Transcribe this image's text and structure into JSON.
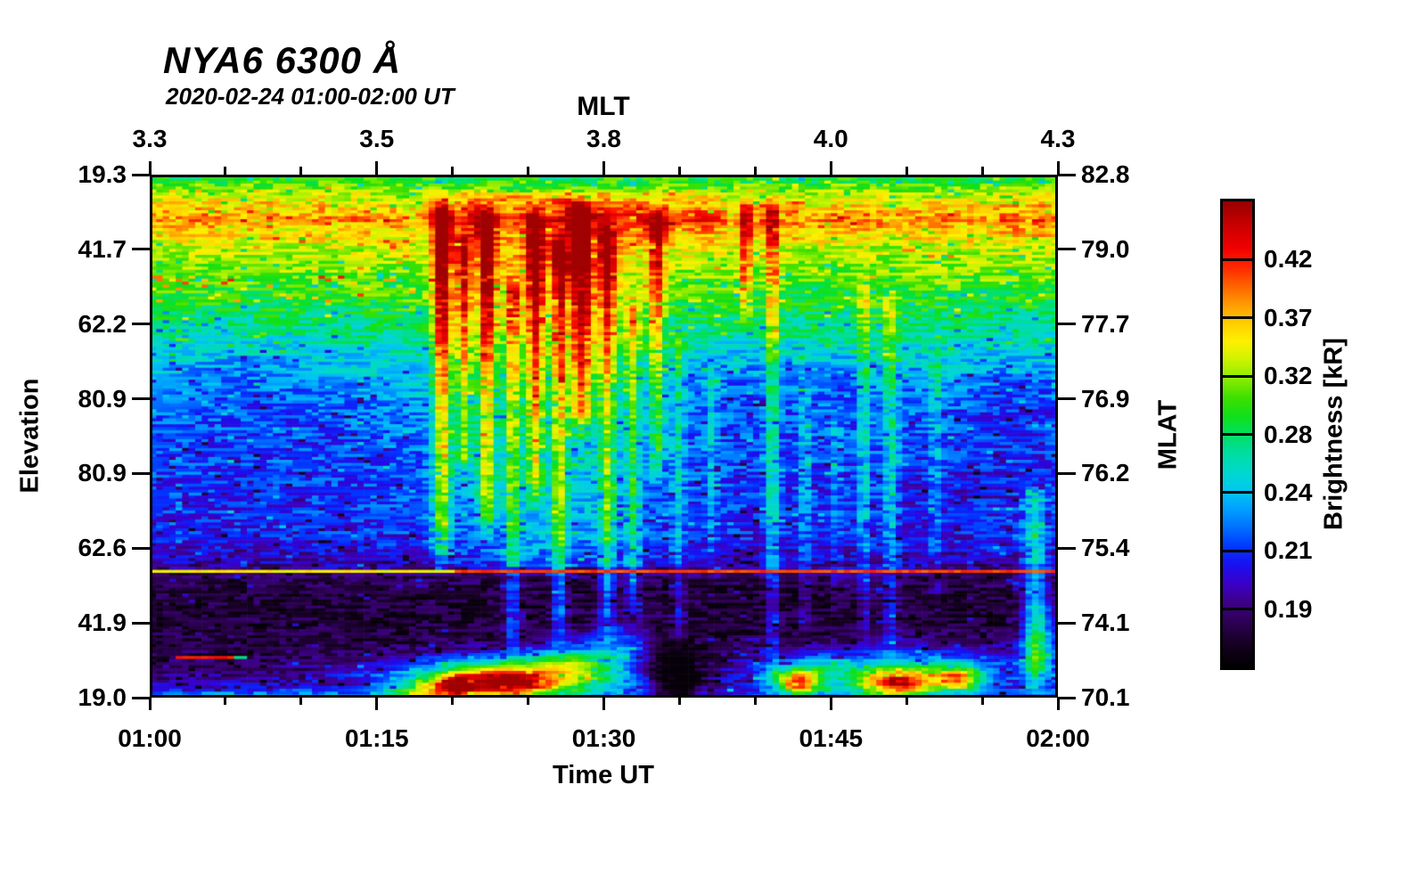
{
  "chart_data": {
    "type": "heatmap",
    "title": "NYA6 6300 Å",
    "subtitle": "2020-02-24 01:00-02:00 UT",
    "axes": {
      "top": {
        "label": "MLT",
        "ticks": [
          "3.3",
          "3.5",
          "3.8",
          "4.0",
          "4.3"
        ]
      },
      "bottom": {
        "label": "Time UT",
        "ticks": [
          "01:00",
          "01:15",
          "01:30",
          "01:45",
          "02:00"
        ]
      },
      "left": {
        "label": "Elevation",
        "ticks": [
          "19.3",
          "41.7",
          "62.2",
          "80.9",
          "80.9",
          "62.6",
          "41.9",
          "19.0"
        ]
      },
      "right": {
        "label": "MLAT",
        "ticks": [
          "82.8",
          "79.0",
          "77.7",
          "76.9",
          "76.2",
          "75.4",
          "74.1",
          "70.1"
        ]
      }
    },
    "colorbar": {
      "label": "Brightness [kR]",
      "ticks_top_to_bottom": [
        "0.42",
        "0.37",
        "0.32",
        "0.28",
        "0.24",
        "0.21",
        "0.19"
      ]
    },
    "grid": {
      "cols": 140,
      "rows": 176
    },
    "seed": 1337,
    "colormap_stops": [
      [
        0.0,
        "#000000"
      ],
      [
        0.05,
        "#160022"
      ],
      [
        0.1,
        "#2e0057"
      ],
      [
        0.14,
        "#3d0087"
      ],
      [
        0.18,
        "#3a00c8"
      ],
      [
        0.22,
        "#1a10f0"
      ],
      [
        0.26,
        "#0038ff"
      ],
      [
        0.3,
        "#0070ff"
      ],
      [
        0.34,
        "#00a0ff"
      ],
      [
        0.38,
        "#00c8f0"
      ],
      [
        0.42,
        "#00d8cc"
      ],
      [
        0.46,
        "#00dda0"
      ],
      [
        0.5,
        "#00e060"
      ],
      [
        0.54,
        "#10e018"
      ],
      [
        0.58,
        "#40e000"
      ],
      [
        0.62,
        "#8cec00"
      ],
      [
        0.66,
        "#ccf300"
      ],
      [
        0.7,
        "#fff000"
      ],
      [
        0.74,
        "#ffcc00"
      ],
      [
        0.78,
        "#ff9900"
      ],
      [
        0.82,
        "#ff6000"
      ],
      [
        0.86,
        "#ff2600"
      ],
      [
        0.9,
        "#f00000"
      ],
      [
        0.95,
        "#c80000"
      ],
      [
        1.0,
        "#960000"
      ]
    ],
    "base_profile": [
      [
        0.0,
        0.52
      ],
      [
        0.012,
        0.56
      ],
      [
        0.03,
        0.64
      ],
      [
        0.055,
        0.72
      ],
      [
        0.082,
        0.8
      ],
      [
        0.11,
        0.72
      ],
      [
        0.14,
        0.66
      ],
      [
        0.18,
        0.61
      ],
      [
        0.22,
        0.56
      ],
      [
        0.27,
        0.5
      ],
      [
        0.32,
        0.44
      ],
      [
        0.37,
        0.38
      ],
      [
        0.42,
        0.33
      ],
      [
        0.47,
        0.29
      ],
      [
        0.54,
        0.27
      ],
      [
        0.62,
        0.25
      ],
      [
        0.69,
        0.23
      ],
      [
        0.73,
        0.18
      ],
      [
        0.757,
        0.14
      ],
      [
        0.77,
        0.1
      ],
      [
        0.8,
        0.07
      ],
      [
        0.88,
        0.07
      ],
      [
        0.92,
        0.09
      ],
      [
        0.955,
        0.12
      ],
      [
        0.98,
        0.16
      ],
      [
        1.0,
        0.22
      ]
    ],
    "band": {
      "center": 0.082,
      "width": 0.05,
      "col_mod_amp": 0.16
    },
    "broad_regions": [
      {
        "cx": 0.435,
        "w": 0.115,
        "amp": 0.13,
        "r0": 0.03,
        "r1": 0.75
      }
    ],
    "streaks": [
      {
        "cx": 0.321,
        "w": 0.01,
        "amp": 0.46,
        "r0": 0.04,
        "r1": 0.76,
        "f": 0.3
      },
      {
        "cx": 0.345,
        "w": 0.008,
        "amp": 0.34,
        "r0": 0.1,
        "r1": 0.6,
        "f": 0.3
      },
      {
        "cx": 0.37,
        "w": 0.009,
        "amp": 0.42,
        "r0": 0.05,
        "r1": 0.7,
        "f": 0.3
      },
      {
        "cx": 0.399,
        "w": 0.008,
        "amp": 0.3,
        "r0": 0.18,
        "r1": 0.95,
        "f": 0.4
      },
      {
        "cx": 0.424,
        "w": 0.009,
        "amp": 0.4,
        "r0": 0.05,
        "r1": 0.65,
        "f": 0.3
      },
      {
        "cx": 0.451,
        "w": 0.008,
        "amp": 0.36,
        "r0": 0.1,
        "r1": 0.92,
        "f": 0.4
      },
      {
        "cx": 0.475,
        "w": 0.012,
        "amp": 0.44,
        "r0": 0.04,
        "r1": 0.52,
        "f": 0.2
      },
      {
        "cx": 0.504,
        "w": 0.009,
        "amp": 0.34,
        "r0": 0.07,
        "r1": 0.9,
        "f": 0.4
      },
      {
        "cx": 0.532,
        "w": 0.008,
        "amp": 0.25,
        "r0": 0.22,
        "r1": 0.88,
        "f": 0.3
      },
      {
        "cx": 0.559,
        "w": 0.008,
        "amp": 0.3,
        "r0": 0.05,
        "r1": 0.6,
        "f": 0.3
      },
      {
        "cx": 0.583,
        "w": 0.007,
        "amp": 0.15,
        "r0": 0.28,
        "r1": 0.93,
        "f": 0.3
      },
      {
        "cx": 0.62,
        "w": 0.006,
        "amp": 0.12,
        "r0": 0.35,
        "r1": 0.8,
        "f": 0.3
      },
      {
        "cx": 0.657,
        "w": 0.006,
        "amp": 0.28,
        "r0": 0.03,
        "r1": 0.3,
        "f": 0.2
      },
      {
        "cx": 0.687,
        "w": 0.007,
        "amp": 0.26,
        "r0": 0.03,
        "r1": 0.97,
        "f": 0.35
      },
      {
        "cx": 0.723,
        "w": 0.006,
        "amp": 0.12,
        "r0": 0.38,
        "r1": 0.9,
        "f": 0.3
      },
      {
        "cx": 0.758,
        "w": 0.006,
        "amp": 0.1,
        "r0": 0.45,
        "r1": 0.85,
        "f": 0.3
      },
      {
        "cx": 0.789,
        "w": 0.007,
        "amp": 0.18,
        "r0": 0.18,
        "r1": 0.92,
        "f": 0.3
      },
      {
        "cx": 0.818,
        "w": 0.009,
        "amp": 0.19,
        "r0": 0.22,
        "r1": 0.95,
        "f": 0.3
      },
      {
        "cx": 0.868,
        "w": 0.007,
        "amp": 0.13,
        "r0": 0.33,
        "r1": 0.85,
        "f": 0.3
      },
      {
        "cx": 0.978,
        "w": 0.013,
        "amp": 0.22,
        "r0": 0.58,
        "r1": 1.0,
        "f": 0.0
      }
    ],
    "dark_patches": [
      {
        "cx": 0.1,
        "cy": 0.4,
        "wx": 0.1,
        "wy": 0.09,
        "amp": 0.05
      },
      {
        "cx": 0.64,
        "cy": 0.4,
        "wx": 0.08,
        "wy": 0.07,
        "amp": 0.06
      },
      {
        "cx": 0.955,
        "cy": 0.44,
        "wx": 0.06,
        "wy": 0.1,
        "amp": 0.07
      },
      {
        "cx": 0.8,
        "cy": 0.4,
        "wx": 0.06,
        "wy": 0.06,
        "amp": 0.05
      },
      {
        "cx": 0.88,
        "cy": 0.6,
        "wx": 0.1,
        "wy": 0.07,
        "amp": 0.04
      }
    ],
    "bottom_blobs": [
      {
        "cx": 0.4,
        "cy": 0.965,
        "wx": 0.13,
        "wy": 0.04,
        "amp": 0.5
      },
      {
        "cx": 0.335,
        "cy": 0.98,
        "wx": 0.018,
        "wy": 0.018,
        "amp": 0.45
      },
      {
        "cx": 0.405,
        "cy": 0.975,
        "wx": 0.045,
        "wy": 0.022,
        "amp": 0.34
      },
      {
        "cx": 0.3,
        "cy": 1.0,
        "wx": 0.04,
        "wy": 0.03,
        "amp": 0.3
      },
      {
        "cx": 0.36,
        "cy": 0.975,
        "wx": 0.04,
        "wy": 0.03,
        "amp": 0.25
      },
      {
        "cx": 0.46,
        "cy": 0.935,
        "wx": 0.05,
        "wy": 0.035,
        "amp": 0.28
      },
      {
        "cx": 0.52,
        "cy": 0.9,
        "wx": 0.04,
        "wy": 0.04,
        "amp": 0.2
      },
      {
        "cx": 0.578,
        "cy": 0.97,
        "wx": 0.032,
        "wy": 0.06,
        "amp": -0.3
      },
      {
        "cx": 0.715,
        "cy": 0.975,
        "wx": 0.026,
        "wy": 0.024,
        "amp": 0.6
      },
      {
        "cx": 0.735,
        "cy": 0.95,
        "wx": 0.07,
        "wy": 0.035,
        "amp": 0.26
      },
      {
        "cx": 0.825,
        "cy": 0.975,
        "wx": 0.042,
        "wy": 0.028,
        "amp": 0.66
      },
      {
        "cx": 0.892,
        "cy": 0.968,
        "wx": 0.026,
        "wy": 0.022,
        "amp": 0.48
      },
      {
        "cx": 0.87,
        "cy": 0.945,
        "wx": 0.1,
        "wy": 0.04,
        "amp": 0.26
      },
      {
        "cx": 0.985,
        "cy": 0.9,
        "wx": 0.022,
        "wy": 0.09,
        "amp": 0.24
      },
      {
        "cx": 0.12,
        "cy": 1.01,
        "wx": 0.15,
        "wy": 0.015,
        "amp": 0.28
      }
    ],
    "speckle_bands": [
      {
        "r0": 0.19,
        "r1": 0.24,
        "x0": 0.0,
        "x1": 0.32,
        "p": 0.08,
        "dv": 0.22
      }
    ],
    "scan_line": {
      "row_frac": 0.7615,
      "split_frac": 0.335,
      "left_value": 0.7,
      "right_value": 0.84
    },
    "red_dash": {
      "row_frac": 0.925,
      "x0": 0.028,
      "x1": 0.09,
      "value": 0.88,
      "tail_value": 0.48
    }
  }
}
